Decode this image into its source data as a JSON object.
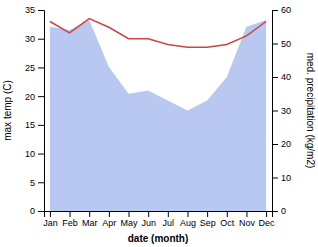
{
  "chart_data": {
    "type": "line",
    "categories": [
      "Jan",
      "Feb",
      "Mar",
      "Apr",
      "May",
      "Jun",
      "Jul",
      "Aug",
      "Sep",
      "Oct",
      "Nov",
      "Dec"
    ],
    "xlabel": "date (month)",
    "ylabel": "max temp (C)",
    "y2label": "med. precipitation (kg/m2)",
    "series": [
      {
        "type": "area",
        "axis": "y2",
        "color": "#b8c8f0",
        "values": [
          55,
          54,
          57,
          43,
          35,
          36,
          33,
          30,
          33,
          40,
          55,
          57
        ]
      },
      {
        "type": "line",
        "color": "#cc4444",
        "values": [
          33,
          31,
          33.5,
          32,
          30,
          30,
          29,
          28.5,
          28.5,
          29,
          30.5,
          33
        ]
      }
    ],
    "ylim": [
      0,
      35
    ],
    "yticks": [
      0,
      5,
      10,
      15,
      20,
      25,
      30,
      35
    ],
    "y2lim": [
      0,
      60
    ],
    "y2ticks": [
      0,
      10,
      20,
      30,
      40,
      50,
      60
    ],
    "grid": false
  }
}
